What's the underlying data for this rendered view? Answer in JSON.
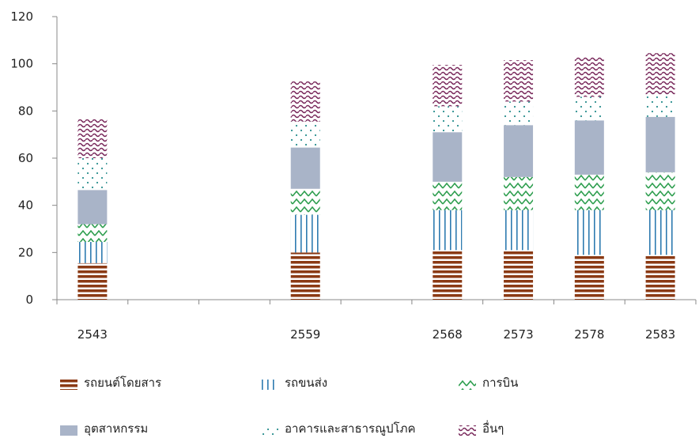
{
  "chart_data": {
    "type": "bar",
    "stacked": true,
    "categories": [
      "2543",
      "2559",
      "2568",
      "2573",
      "2578",
      "2583"
    ],
    "x_slots": [
      0,
      3,
      5,
      6,
      7,
      8
    ],
    "ylim": [
      0,
      120
    ],
    "yticks": [
      0,
      20,
      40,
      60,
      80,
      100,
      120
    ],
    "grid": false,
    "legend_position": "bottom",
    "series": [
      {
        "name": "รถยนต์โดยสาร",
        "values": [
          15.5,
          20,
          21,
          21,
          19,
          19
        ],
        "color": "#8B3A14",
        "pattern": "horizontal-stripes"
      },
      {
        "name": "รถขนส่ง",
        "values": [
          9,
          16,
          17,
          17,
          19,
          19
        ],
        "color": "#2E7BB0",
        "pattern": "vertical-lines"
      },
      {
        "name": "การบิน",
        "values": [
          7.5,
          11,
          12,
          14,
          15,
          16
        ],
        "color": "#2E9E4F",
        "pattern": "zigzag"
      },
      {
        "name": "อุตสาหกรรม",
        "values": [
          14.5,
          17.5,
          21,
          22,
          23,
          23.5
        ],
        "color": "#A9B4C8",
        "pattern": "solid"
      },
      {
        "name": "อาคารและสาธารณูปโภค",
        "values": [
          13.5,
          11,
          11,
          10,
          10,
          9.5
        ],
        "color": "#2A8F8F",
        "pattern": "dots"
      },
      {
        "name": "อื่นๆ",
        "values": [
          16.5,
          17,
          17.5,
          17.5,
          17,
          17.5
        ],
        "color": "#7A2A5C",
        "pattern": "waves"
      }
    ]
  }
}
